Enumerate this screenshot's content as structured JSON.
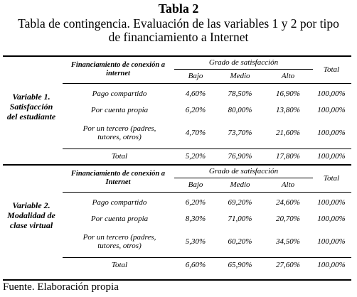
{
  "title": "Tabla 2",
  "subtitle": "Tabla de contingencia. Evaluación de las variables 1 y 2 por tipo de financiamiento a Internet",
  "blocks": [
    {
      "variable": "Variable 1. Satisfacción del estudiante",
      "financing_header": "Financiamiento de conexión a internet",
      "group_header": "Grado de satisfacción",
      "columns": [
        "Bajo",
        "Medio",
        "Alto",
        "Total"
      ],
      "rows": [
        {
          "label": "Pago compartido",
          "values": [
            "4,60%",
            "78,50%",
            "16,90%",
            "100,00%"
          ]
        },
        {
          "label": "Por cuenta propia",
          "values": [
            "6,20%",
            "80,00%",
            "13,80%",
            "100,00%"
          ]
        },
        {
          "label": "Por un tercero (padres, tutores, otros)",
          "values": [
            "4,70%",
            "73,70%",
            "21,60%",
            "100,00%"
          ]
        }
      ],
      "total": {
        "label": "Total",
        "values": [
          "5,20%",
          "76,90%",
          "17,80%",
          "100,00%"
        ]
      }
    },
    {
      "variable": "Variable 2. Modalidad de clase virtual",
      "financing_header": "Financiamiento de conexión a Internet",
      "group_header": "Grado de satisfacción",
      "columns": [
        "Bajo",
        "Medio",
        "Alto",
        "Total"
      ],
      "rows": [
        {
          "label": "Pago compartido",
          "values": [
            "6,20%",
            "69,20%",
            "24,60%",
            "100,00%"
          ]
        },
        {
          "label": "Por cuenta propia",
          "values": [
            "8,30%",
            "71,00%",
            "20,70%",
            "100,00%"
          ]
        },
        {
          "label": "Por un tercero (padres, tutores, otros)",
          "values": [
            "5,30%",
            "60,20%",
            "34,50%",
            "100,00%"
          ]
        }
      ],
      "total": {
        "label": "Total",
        "values": [
          "6,60%",
          "65,90%",
          "27,60%",
          "100,00%"
        ]
      }
    }
  ],
  "source": "Fuente. Elaboración propia"
}
